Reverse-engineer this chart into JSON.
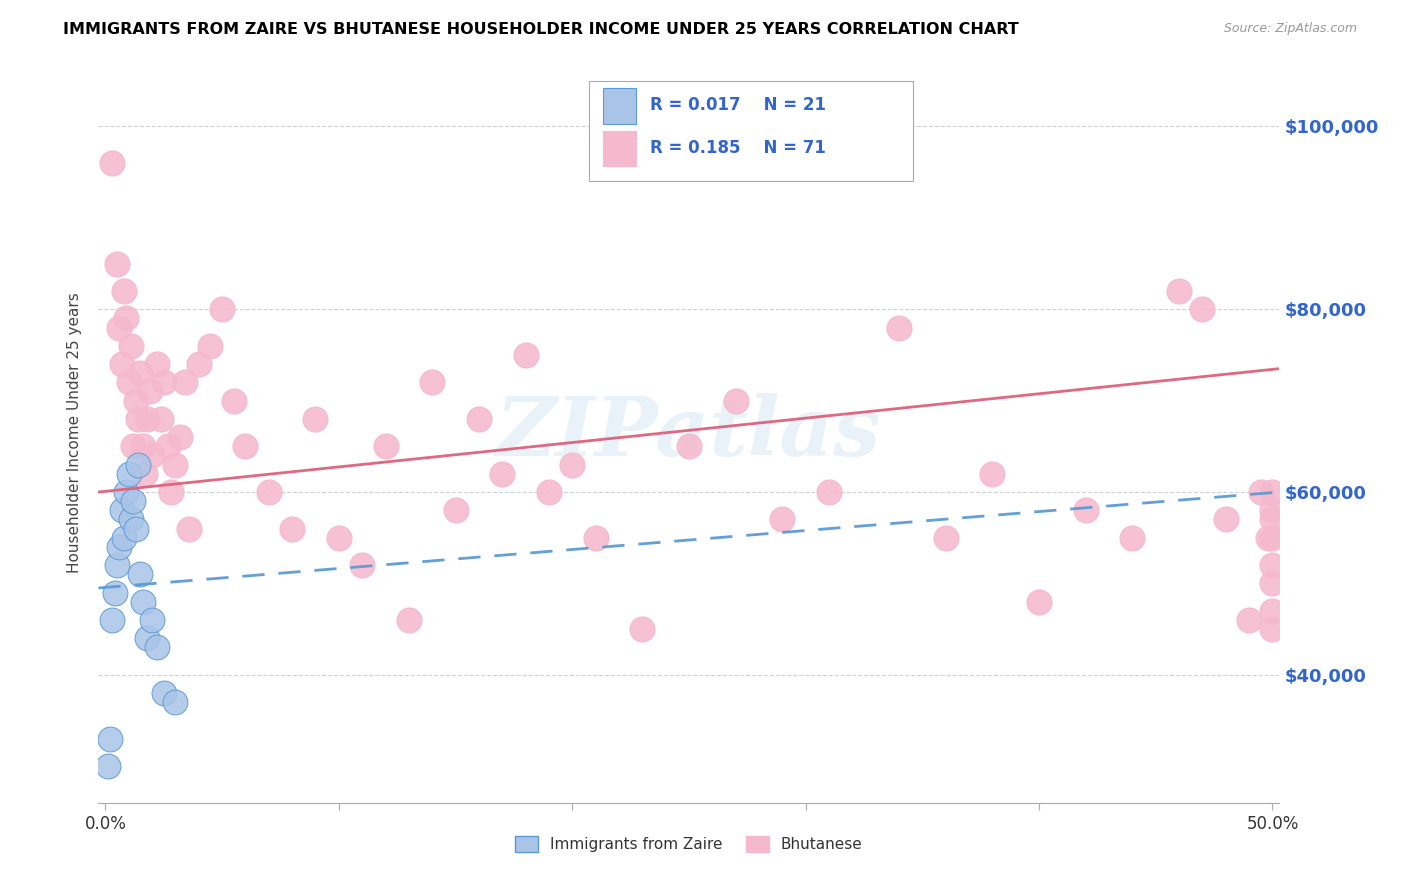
{
  "title": "IMMIGRANTS FROM ZAIRE VS BHUTANESE HOUSEHOLDER INCOME UNDER 25 YEARS CORRELATION CHART",
  "source": "Source: ZipAtlas.com",
  "ylabel": "Householder Income Under 25 years",
  "ytick_labels": [
    "$40,000",
    "$60,000",
    "$80,000",
    "$100,000"
  ],
  "ytick_values": [
    40000,
    60000,
    80000,
    100000
  ],
  "ymin": 26000,
  "ymax": 107000,
  "xmin": -0.003,
  "xmax": 0.503,
  "color_zaire": "#aac4e8",
  "color_bhutanese": "#f5b8cc",
  "trendline_zaire_color": "#5b9bd5",
  "trendline_bhutanese_color": "#e0607a",
  "watermark": "ZIPatlas",
  "legend_box_color": "#cccccc",
  "bottom_grid_color": "#dddddd",
  "zaire_x": [
    0.001,
    0.002,
    0.003,
    0.004,
    0.005,
    0.006,
    0.007,
    0.008,
    0.009,
    0.01,
    0.011,
    0.012,
    0.013,
    0.014,
    0.015,
    0.016,
    0.018,
    0.02,
    0.022,
    0.025,
    0.03
  ],
  "zaire_y": [
    30000,
    33000,
    46000,
    49000,
    52000,
    54000,
    58000,
    55000,
    60000,
    62000,
    57000,
    59000,
    56000,
    63000,
    51000,
    48000,
    44000,
    46000,
    43000,
    38000,
    37000
  ],
  "bhutanese_x": [
    0.003,
    0.005,
    0.006,
    0.007,
    0.008,
    0.009,
    0.01,
    0.011,
    0.012,
    0.013,
    0.014,
    0.015,
    0.016,
    0.017,
    0.018,
    0.019,
    0.02,
    0.022,
    0.024,
    0.025,
    0.027,
    0.028,
    0.03,
    0.032,
    0.034,
    0.036,
    0.04,
    0.045,
    0.05,
    0.055,
    0.06,
    0.07,
    0.08,
    0.09,
    0.1,
    0.11,
    0.12,
    0.13,
    0.14,
    0.15,
    0.16,
    0.17,
    0.18,
    0.19,
    0.2,
    0.21,
    0.23,
    0.25,
    0.27,
    0.29,
    0.31,
    0.34,
    0.36,
    0.38,
    0.4,
    0.42,
    0.44,
    0.46,
    0.47,
    0.48,
    0.49,
    0.495,
    0.498,
    0.5,
    0.5,
    0.5,
    0.5,
    0.5,
    0.5,
    0.5,
    0.5
  ],
  "bhutanese_y": [
    96000,
    85000,
    78000,
    74000,
    82000,
    79000,
    72000,
    76000,
    65000,
    70000,
    68000,
    73000,
    65000,
    62000,
    68000,
    71000,
    64000,
    74000,
    68000,
    72000,
    65000,
    60000,
    63000,
    66000,
    72000,
    56000,
    74000,
    76000,
    80000,
    70000,
    65000,
    60000,
    56000,
    68000,
    55000,
    52000,
    65000,
    46000,
    72000,
    58000,
    68000,
    62000,
    75000,
    60000,
    63000,
    55000,
    45000,
    65000,
    70000,
    57000,
    60000,
    78000,
    55000,
    62000,
    48000,
    58000,
    55000,
    82000,
    80000,
    57000,
    46000,
    60000,
    55000,
    60000,
    45000,
    52000,
    57000,
    55000,
    47000,
    58000,
    50000
  ]
}
